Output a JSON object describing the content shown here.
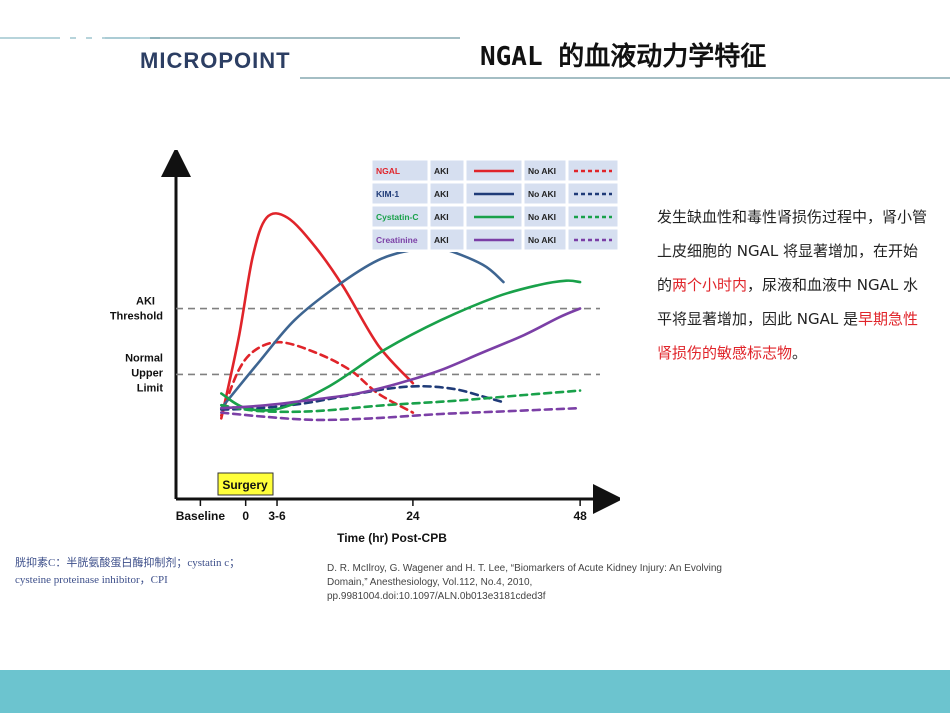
{
  "header": {
    "logo_text": "MICROPOINT",
    "title": "NGAL 的血液动力学特征"
  },
  "chart_data": {
    "type": "line",
    "xlabel": "Time (hr) Post-CPB",
    "x_ticks": [
      "Baseline",
      "0",
      "3-6",
      "24",
      "48"
    ],
    "y_ticks": [
      "AKI Threshold",
      "Normal Upper Limit"
    ],
    "event_label": "Surgery",
    "legend": {
      "rows": [
        {
          "marker": "NGAL",
          "aki": "AKI",
          "no_aki": "No AKI",
          "color": "#e0242a"
        },
        {
          "marker": "KIM-1",
          "aki": "AKI",
          "no_aki": "No AKI",
          "color": "#1f3b78"
        },
        {
          "marker": "Cystatin-C",
          "aki": "AKI",
          "no_aki": "No AKI",
          "color": "#19a14a"
        },
        {
          "marker": "Creatinine",
          "aki": "AKI",
          "no_aki": "No AKI",
          "color": "#7b3fa6"
        }
      ]
    },
    "series": [
      {
        "name": "NGAL",
        "condition": "AKI",
        "style": "solid",
        "color": "#e0242a",
        "points": [
          [
            -3.5,
            0.05
          ],
          [
            -1,
            0.6
          ],
          [
            1,
            1.15
          ],
          [
            3,
            1.42
          ],
          [
            6,
            1.42
          ],
          [
            10,
            1.22
          ],
          [
            14,
            0.95
          ],
          [
            19,
            0.55
          ],
          [
            24,
            0.29
          ]
        ]
      },
      {
        "name": "NGAL",
        "condition": "No AKI",
        "style": "dashed",
        "color": "#e0242a",
        "points": [
          [
            -3.5,
            0.07
          ],
          [
            -1,
            0.38
          ],
          [
            1.5,
            0.52
          ],
          [
            5,
            0.57
          ],
          [
            10,
            0.5
          ],
          [
            15,
            0.38
          ],
          [
            19,
            0.22
          ],
          [
            24,
            0.09
          ]
        ]
      },
      {
        "name": "KIM-1",
        "condition": "AKI",
        "style": "solid",
        "color": "#3e6591",
        "points": [
          [
            -3.5,
            0.12
          ],
          [
            2,
            0.44
          ],
          [
            7,
            0.72
          ],
          [
            13,
            0.95
          ],
          [
            19,
            1.13
          ],
          [
            24,
            1.2
          ],
          [
            28,
            1.21
          ],
          [
            34,
            1.1
          ],
          [
            37,
            0.98
          ]
        ]
      },
      {
        "name": "KIM-1",
        "condition": "No AKI",
        "style": "dashed",
        "color": "#1f3b78",
        "points": [
          [
            -3.5,
            0.11
          ],
          [
            2,
            0.12
          ],
          [
            8,
            0.15
          ],
          [
            14,
            0.2
          ],
          [
            20,
            0.25
          ],
          [
            25,
            0.27
          ],
          [
            30,
            0.25
          ],
          [
            34,
            0.2
          ],
          [
            37,
            0.16
          ]
        ]
      },
      {
        "name": "Cystatin-C",
        "condition": "AKI",
        "style": "solid",
        "color": "#19a14a",
        "points": [
          [
            -3.5,
            0.22
          ],
          [
            0,
            0.12
          ],
          [
            5,
            0.12
          ],
          [
            12,
            0.27
          ],
          [
            20,
            0.52
          ],
          [
            28,
            0.72
          ],
          [
            36,
            0.88
          ],
          [
            42,
            0.96
          ],
          [
            46,
            0.99
          ],
          [
            48,
            0.98
          ]
        ]
      },
      {
        "name": "Cystatin-C",
        "condition": "No AKI",
        "style": "dashed",
        "color": "#19a14a",
        "points": [
          [
            -3.5,
            0.14
          ],
          [
            2,
            0.1
          ],
          [
            10,
            0.1
          ],
          [
            20,
            0.14
          ],
          [
            30,
            0.17
          ],
          [
            40,
            0.21
          ],
          [
            48,
            0.24
          ]
        ]
      },
      {
        "name": "Creatinine",
        "condition": "AKI",
        "style": "solid",
        "color": "#7b3fa6",
        "points": [
          [
            -3.5,
            0.12
          ],
          [
            3,
            0.14
          ],
          [
            10,
            0.18
          ],
          [
            16,
            0.22
          ],
          [
            22,
            0.29
          ],
          [
            28,
            0.38
          ],
          [
            34,
            0.5
          ],
          [
            40,
            0.62
          ],
          [
            45,
            0.74
          ],
          [
            48,
            0.8
          ]
        ]
      },
      {
        "name": "Creatinine",
        "condition": "No AKI",
        "style": "dashed",
        "color": "#7b3fa6",
        "points": [
          [
            -3.5,
            0.09
          ],
          [
            3,
            0.06
          ],
          [
            10,
            0.04
          ],
          [
            18,
            0.05
          ],
          [
            28,
            0.08
          ],
          [
            38,
            0.1
          ],
          [
            48,
            0.12
          ]
        ]
      }
    ],
    "reference_lines": [
      {
        "label": "AKI Threshold",
        "y": 0.8
      },
      {
        "label": "Normal Upper Limit",
        "y": 0.35
      }
    ],
    "xlim": [
      -10,
      52
    ],
    "ylim": [
      -0.5,
      1.8
    ],
    "grid": false
  },
  "description": {
    "parts": [
      {
        "text": "发生缺血性和毒性肾损伤过程中，肾小管上皮细胞的 NGAL 将显著增加，在开始的",
        "highlight": false
      },
      {
        "text": "两个小时内",
        "highlight": true
      },
      {
        "text": "，尿液和血液中 NGAL 水平将显著增加，因此 NGAL 是",
        "highlight": false
      },
      {
        "text": "早期急性肾损伤的敏感标志物",
        "highlight": true
      },
      {
        "text": "。",
        "highlight": false
      }
    ]
  },
  "footnote": {
    "line1": "胱抑素C：半胱氨酸蛋白酶抑制剂；cystatin c；",
    "line2": "cysteine proteinase inhibitor，CPI"
  },
  "reference": {
    "line1": "D. R. McIlroy, G. Wagener and H. T. Lee, “Biomarkers of Acute Kidney Injury: An Evolving",
    "line2": "Domain,”  Anesthesiology, Vol.112, No.4, 2010, pp.9981004.doi:10.1097/ALN.0b013e3181cded3f"
  },
  "colors": {
    "footer": "#6cc4cf",
    "highlight": "#e0242a",
    "logo": "#2c3e63"
  }
}
